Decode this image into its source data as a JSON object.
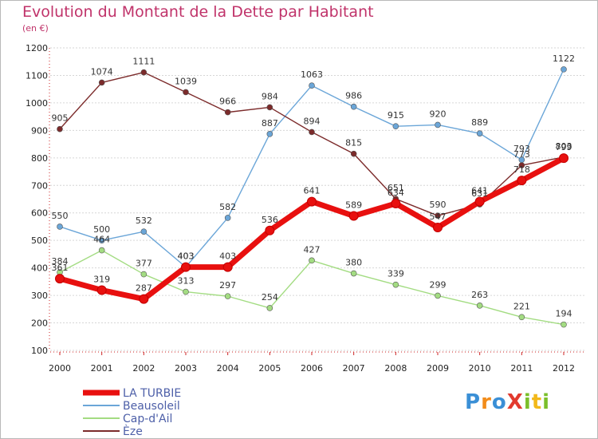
{
  "title": "Evolution du Montant de la Dette par Habitant",
  "subtitle": "(en €)",
  "logo": {
    "text": "ProXiti",
    "letters": [
      {
        "ch": "P",
        "color": "#3a8fd6"
      },
      {
        "ch": "r",
        "color": "#f28c1a"
      },
      {
        "ch": "o",
        "color": "#3a8fd6"
      },
      {
        "ch": "X",
        "color": "#e23a2e"
      },
      {
        "ch": "i",
        "color": "#7bbf2a"
      },
      {
        "ch": "t",
        "color": "#f2b81a"
      },
      {
        "ch": "i",
        "color": "#7bbf2a"
      }
    ]
  },
  "chart_data": {
    "type": "line",
    "title": "Evolution du Montant de la Dette par Habitant",
    "subtitle": "(en €)",
    "xlabel": "",
    "ylabel": "",
    "x": [
      "2000",
      "2001",
      "2002",
      "2003",
      "2004",
      "2005",
      "2006",
      "2007",
      "2008",
      "2009",
      "2010",
      "2011",
      "2012"
    ],
    "ylim": [
      100,
      1200
    ],
    "yticks": [
      100,
      200,
      300,
      400,
      500,
      600,
      700,
      800,
      900,
      1000,
      1100,
      1200
    ],
    "grid": "horizontal",
    "legend_position": "bottom-left",
    "series": [
      {
        "name": "LA TURBIE",
        "color": "#e8100f",
        "highlight": true,
        "values": [
          361,
          319,
          287,
          403,
          403,
          536,
          641,
          589,
          634,
          547,
          641,
          718,
          799
        ]
      },
      {
        "name": "Beausoleil",
        "color": "#6ba6d8",
        "highlight": false,
        "values": [
          550,
          500,
          532,
          403,
          582,
          887,
          1063,
          986,
          915,
          920,
          889,
          793,
          1122
        ]
      },
      {
        "name": "Cap-d'Ail",
        "color": "#a3dc82",
        "highlight": false,
        "values": [
          384,
          464,
          377,
          313,
          297,
          254,
          427,
          380,
          339,
          299,
          263,
          221,
          194
        ]
      },
      {
        "name": "Èze",
        "color": "#7c2b2b",
        "highlight": false,
        "values": [
          905,
          1074,
          1111,
          1039,
          966,
          984,
          894,
          815,
          651,
          590,
          631,
          773,
          803
        ]
      }
    ]
  }
}
